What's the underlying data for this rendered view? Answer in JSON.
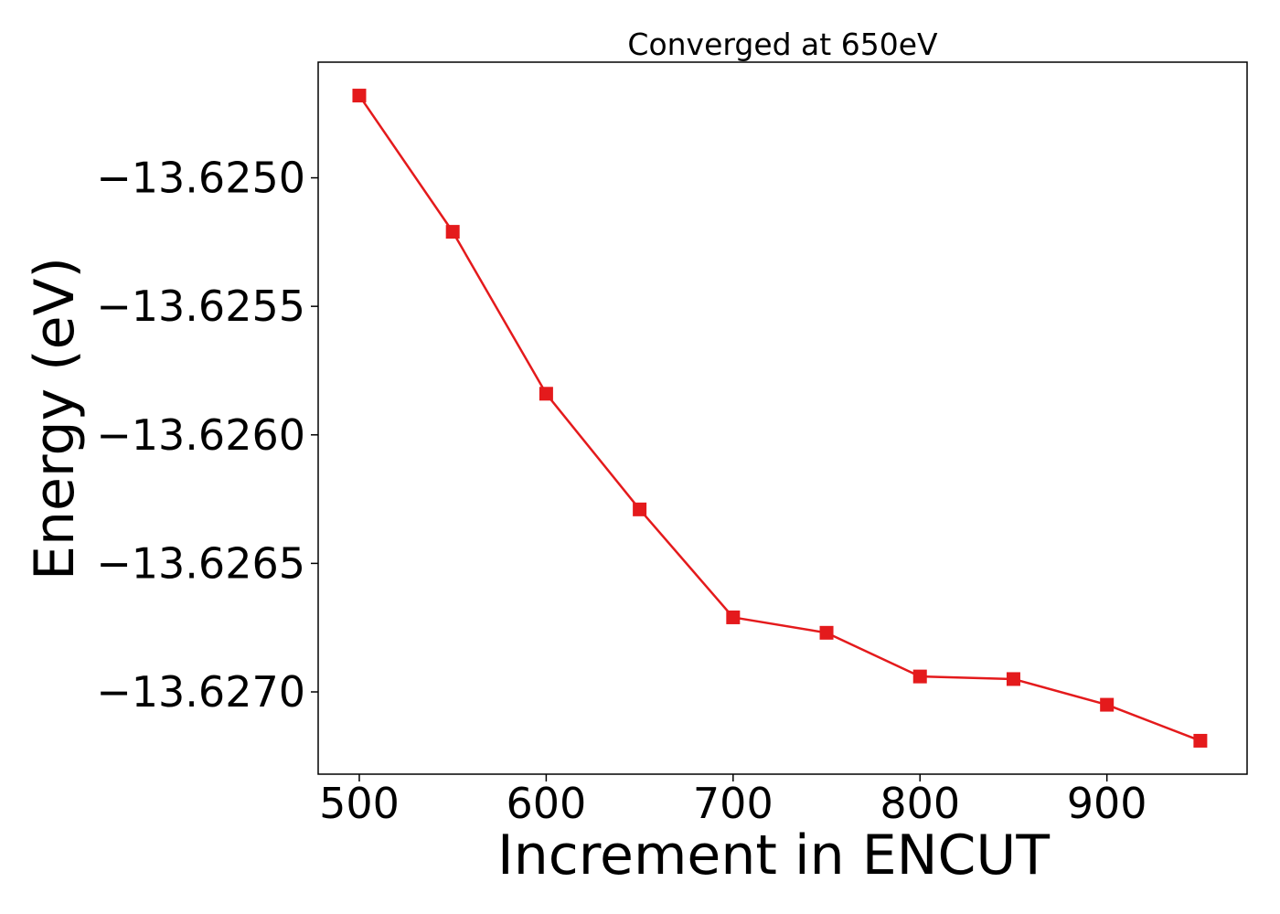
{
  "chart_data": {
    "type": "line",
    "title": "Converged at 650eV",
    "xlabel": "Increment in ENCUT",
    "ylabel": "Energy (eV)",
    "x": [
      500,
      550,
      600,
      650,
      700,
      750,
      800,
      850,
      900,
      950
    ],
    "series": [
      {
        "values": [
          -13.62468,
          -13.62521,
          -13.62584,
          -13.62629,
          -13.62671,
          -13.62677,
          -13.62694,
          -13.62695,
          -13.62705,
          -13.62719
        ],
        "color": "#e41a1c",
        "marker": "square"
      }
    ],
    "xlim": [
      478,
      975
    ],
    "ylim": [
      -13.62732,
      -13.62455
    ],
    "xticks": [
      500,
      600,
      700,
      800,
      900
    ],
    "xtick_labels": [
      "500",
      "600",
      "700",
      "800",
      "900"
    ],
    "yticks": [
      -13.625,
      -13.6255,
      -13.626,
      -13.6265,
      -13.627
    ],
    "ytick_labels": [
      "−13.6250",
      "−13.6255",
      "−13.6260",
      "−13.6265",
      "−13.6270"
    ],
    "grid": false,
    "legend": "none"
  }
}
